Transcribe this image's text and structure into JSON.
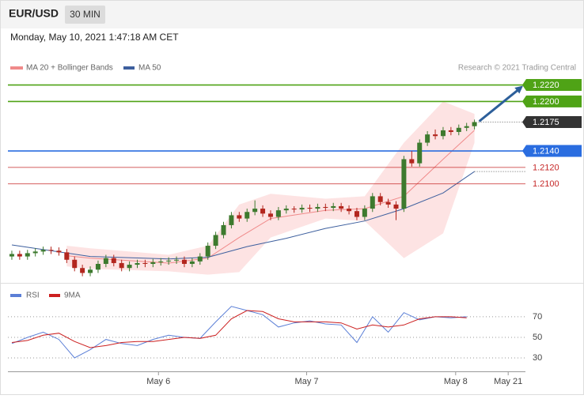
{
  "header": {
    "symbol": "EUR/USD",
    "interval": "30 MIN",
    "date": "Monday, May 10, 2021 1:47:18 AM CET"
  },
  "chart_data": [
    {
      "type": "candlestick",
      "credit": "Research © 2021 Trading Central",
      "up_color": "#3d7a2e",
      "down_color": "#b3261e",
      "xlim": [
        -0.5,
        65.5
      ],
      "ylim": [
        1.198,
        1.2232
      ],
      "open": [
        1.2012,
        1.2015,
        1.2012,
        1.2016,
        1.2018,
        1.202,
        1.2019,
        1.2017,
        1.2008,
        1.1998,
        1.1992,
        1.1996,
        1.2003,
        1.201,
        1.2004,
        1.1998,
        1.2002,
        1.2004,
        1.2003,
        1.2005,
        1.2006,
        1.2007,
        1.2008,
        1.2003,
        1.2006,
        1.2012,
        1.2025,
        1.2038,
        1.205,
        1.2062,
        1.2058,
        1.2066,
        1.207,
        1.2064,
        1.206,
        1.2068,
        1.207,
        1.2069,
        1.2071,
        1.207,
        1.2072,
        1.2071,
        1.2073,
        1.207,
        1.2067,
        1.206,
        1.207,
        1.2085,
        1.2078,
        1.2075,
        1.207,
        1.213,
        1.2125,
        1.215,
        1.216,
        1.2158,
        1.2165,
        1.2163,
        1.2168,
        1.217
      ],
      "high": [
        1.2019,
        1.2019,
        1.202,
        1.2022,
        1.2024,
        1.2024,
        1.2023,
        1.2021,
        1.2012,
        1.2002,
        1.2,
        1.2007,
        1.2014,
        1.2014,
        1.2008,
        1.2006,
        1.2008,
        1.2008,
        1.2009,
        1.201,
        1.2011,
        1.2012,
        1.2012,
        1.201,
        1.2016,
        1.2029,
        1.2042,
        1.2054,
        1.2066,
        1.2066,
        1.207,
        1.208,
        1.2074,
        1.2068,
        1.2072,
        1.2074,
        1.2073,
        1.2075,
        1.2075,
        1.2076,
        1.2076,
        1.2077,
        1.2077,
        1.2074,
        1.2071,
        1.2074,
        1.2089,
        1.2089,
        1.2082,
        1.2079,
        1.2134,
        1.214,
        1.2154,
        1.2164,
        1.2166,
        1.2169,
        1.2169,
        1.2172,
        1.2174,
        1.2178
      ],
      "low": [
        1.2008,
        1.2008,
        1.2008,
        1.2012,
        1.2014,
        1.2015,
        1.2013,
        1.2004,
        1.1994,
        1.1988,
        1.1988,
        1.1992,
        1.1999,
        1.2,
        1.1994,
        1.1994,
        1.1998,
        1.1999,
        1.1999,
        1.2001,
        1.2002,
        1.2003,
        1.1999,
        1.1999,
        1.2002,
        1.2008,
        1.2021,
        1.2034,
        1.2046,
        1.2054,
        1.2054,
        1.2062,
        1.206,
        1.2056,
        1.2056,
        1.2064,
        1.2065,
        1.2065,
        1.2066,
        1.2066,
        1.2067,
        1.2067,
        1.2066,
        1.2063,
        1.2056,
        1.2056,
        1.2066,
        1.2074,
        1.2071,
        1.2056,
        1.2066,
        1.2121,
        1.2121,
        1.2146,
        1.2154,
        1.2154,
        1.2159,
        1.2159,
        1.2164,
        1.2166
      ],
      "close": [
        1.2015,
        1.2012,
        1.2016,
        1.2018,
        1.202,
        1.2019,
        1.2017,
        1.2008,
        1.1998,
        1.1992,
        1.1996,
        1.2003,
        1.201,
        1.2004,
        1.1998,
        1.2002,
        1.2004,
        1.2003,
        1.2005,
        1.2006,
        1.2007,
        1.2008,
        1.2003,
        1.2006,
        1.2012,
        1.2025,
        1.2038,
        1.205,
        1.2062,
        1.2058,
        1.2066,
        1.207,
        1.2064,
        1.206,
        1.2068,
        1.207,
        1.2069,
        1.2071,
        1.207,
        1.2072,
        1.2071,
        1.2073,
        1.207,
        1.2067,
        1.206,
        1.207,
        1.2085,
        1.2078,
        1.2075,
        1.207,
        1.213,
        1.2125,
        1.215,
        1.216,
        1.2158,
        1.2165,
        1.2163,
        1.2168,
        1.217,
        1.2175
      ],
      "overlays": [
        {
          "name": "MA 20 + Bollinger Bands",
          "color": "#f08a8a",
          "band_color": "#fde3e3",
          "x": [
            7,
            10,
            20,
            25,
            29,
            33,
            40,
            45,
            50,
            55,
            59
          ],
          "values": [
            1.2013,
            1.201,
            1.2004,
            1.201,
            1.2035,
            1.2058,
            1.2068,
            1.207,
            1.2085,
            1.213,
            1.2165
          ],
          "upper": [
            1.2025,
            1.2022,
            1.2014,
            1.2025,
            1.2075,
            1.2088,
            1.2082,
            1.2085,
            1.215,
            1.22,
            1.2185
          ],
          "lower": [
            1.2,
            1.1997,
            1.1994,
            1.199,
            1.1993,
            1.2035,
            1.2058,
            1.2055,
            1.201,
            1.204,
            1.215
          ]
        },
        {
          "name": "MA 50",
          "color": "#3d5f9e",
          "x": [
            0,
            10,
            20,
            25,
            30,
            35,
            40,
            45,
            50,
            55,
            59
          ],
          "values": [
            1.2026,
            1.2012,
            1.2009,
            1.2011,
            1.2024,
            1.2034,
            1.2046,
            1.2055,
            1.207,
            1.2089,
            1.2115
          ]
        }
      ],
      "levels": [
        {
          "value": 1.222,
          "label": "1.2220",
          "color": "#4fa316",
          "line": "solid",
          "box": true
        },
        {
          "value": 1.22,
          "label": "1.2200",
          "color": "#4fa316",
          "line": "solid",
          "box": true
        },
        {
          "value": 1.2175,
          "label": "1.2175",
          "color": "#333333",
          "line": "dotted",
          "box": true
        },
        {
          "value": 1.214,
          "label": "1.2140",
          "color": "#2a6de0",
          "line": "solid",
          "box": true
        },
        {
          "value": 1.212,
          "label": "1.2120",
          "color": "#c62828",
          "line": "solid",
          "box": false
        },
        {
          "value": 1.21,
          "label": "1.2100",
          "color": "#c62828",
          "line": "solid",
          "box": false
        }
      ]
    },
    {
      "type": "line",
      "xlim": [
        -0.5,
        65.5
      ],
      "ylim": [
        17,
        86
      ],
      "yticks": [
        30,
        50,
        70
      ],
      "grid": true,
      "xticks": [
        {
          "value": 18.7,
          "label": "May 6"
        },
        {
          "value": 37.6,
          "label": "May 7"
        },
        {
          "value": 56.6,
          "label": "May 8"
        },
        {
          "value": 63.3,
          "label": "May 21"
        }
      ],
      "x": [
        0,
        2,
        4,
        6,
        8,
        10,
        12,
        14,
        16,
        18,
        20,
        22,
        24,
        26,
        28,
        30,
        32,
        34,
        36,
        38,
        40,
        42,
        44,
        46,
        48,
        50,
        52,
        54,
        56,
        58
      ],
      "series": [
        {
          "name": "RSI",
          "color": "#5b7fd6",
          "values": [
            44,
            50,
            55,
            48,
            30,
            38,
            48,
            44,
            42,
            48,
            52,
            50,
            49,
            65,
            80,
            76,
            72,
            60,
            64,
            66,
            63,
            62,
            45,
            70,
            55,
            74,
            67,
            70,
            69,
            70
          ]
        },
        {
          "name": "9MA",
          "color": "#cc1f1f",
          "values": [
            45,
            47,
            52,
            54,
            46,
            40,
            42,
            45,
            46,
            46,
            48,
            50,
            49,
            52,
            68,
            76,
            75,
            68,
            65,
            65,
            65,
            64,
            58,
            62,
            60,
            62,
            68,
            70,
            70,
            69
          ]
        }
      ]
    }
  ]
}
